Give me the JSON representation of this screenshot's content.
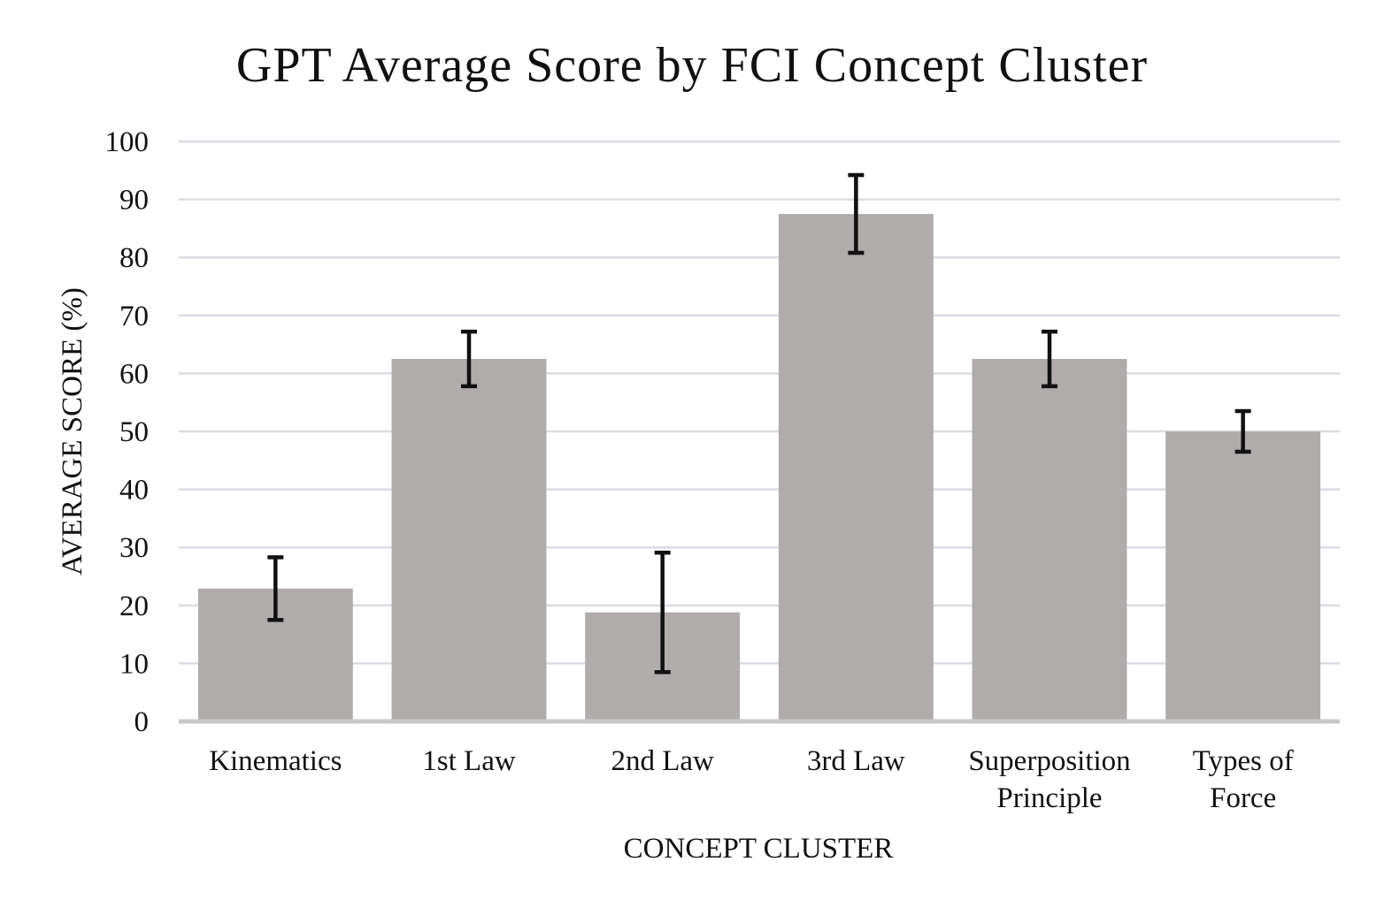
{
  "chart_data": {
    "type": "bar",
    "title": "GPT Average Score by FCI Concept Cluster",
    "xlabel": "CONCEPT CLUSTER",
    "ylabel": "AVERAGE SCORE (%)",
    "ylim": [
      0,
      100
    ],
    "yticks": [
      "0",
      "10",
      "20",
      "30",
      "40",
      "50",
      "60",
      "70",
      "80",
      "90",
      "100"
    ],
    "categories": [
      [
        "Kinematics"
      ],
      [
        "1st Law"
      ],
      [
        "2nd Law"
      ],
      [
        "3rd Law"
      ],
      [
        "Superposition",
        "Principle"
      ],
      [
        "Types of",
        "Force"
      ]
    ],
    "values": [
      22.9,
      62.5,
      18.8,
      87.5,
      62.5,
      50.0
    ],
    "error": [
      5.4,
      4.7,
      10.3,
      6.7,
      4.7,
      3.5
    ],
    "grid": true,
    "bar_color": "#b0acab",
    "error_color": "#111111"
  }
}
